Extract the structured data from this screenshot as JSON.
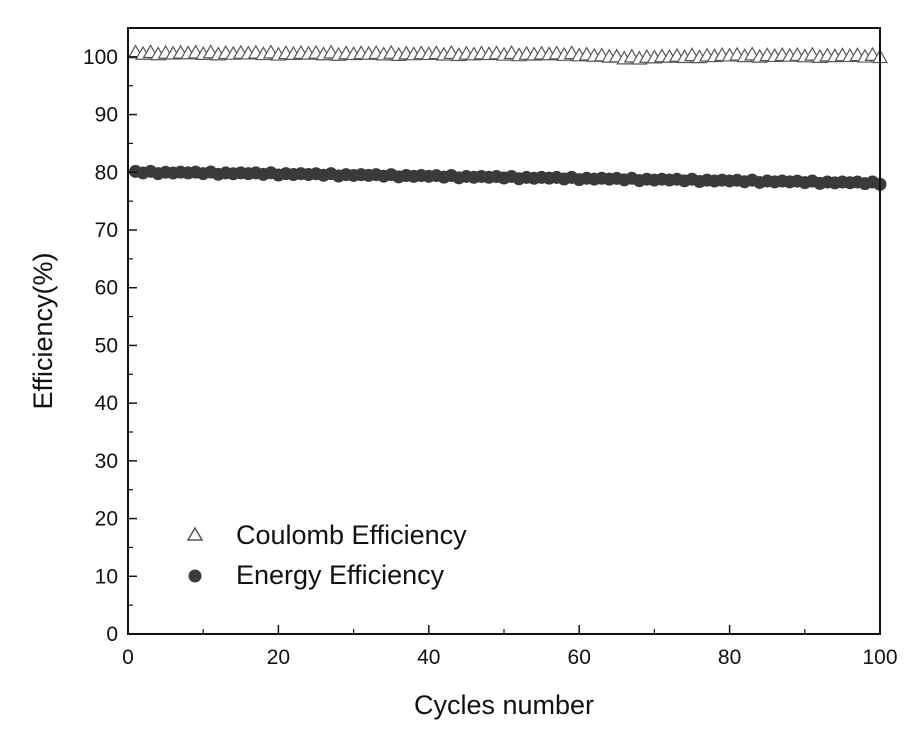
{
  "chart_data": {
    "type": "scatter",
    "xlabel": "Cycles number",
    "ylabel": "Efficiency(%)",
    "xlim": [
      0,
      100
    ],
    "ylim": [
      0,
      105
    ],
    "xticks": [
      0,
      20,
      40,
      60,
      80,
      100
    ],
    "yticks": [
      0,
      10,
      20,
      30,
      40,
      50,
      60,
      70,
      80,
      90,
      100
    ],
    "x_minor_step": 10,
    "y_minor_step": 5,
    "grid": false,
    "legend_position": "bottom-left",
    "series": [
      {
        "name": "Coulomb Efficiency",
        "marker": "open-triangle",
        "color": "#555555",
        "x_range": [
          1,
          100
        ],
        "anchors": [
          {
            "x": 1,
            "y": 100.6
          },
          {
            "x": 30,
            "y": 100.5
          },
          {
            "x": 60,
            "y": 100.4
          },
          {
            "x": 66,
            "y": 99.8
          },
          {
            "x": 80,
            "y": 100.2
          },
          {
            "x": 100,
            "y": 100.1
          }
        ]
      },
      {
        "name": "Energy Efficiency",
        "marker": "filled-circle",
        "color": "#3a3a3a",
        "x_range": [
          1,
          100
        ],
        "anchors": [
          {
            "x": 1,
            "y": 80.0
          },
          {
            "x": 20,
            "y": 79.7
          },
          {
            "x": 40,
            "y": 79.3
          },
          {
            "x": 60,
            "y": 78.9
          },
          {
            "x": 80,
            "y": 78.5
          },
          {
            "x": 100,
            "y": 78.1
          }
        ]
      }
    ]
  }
}
